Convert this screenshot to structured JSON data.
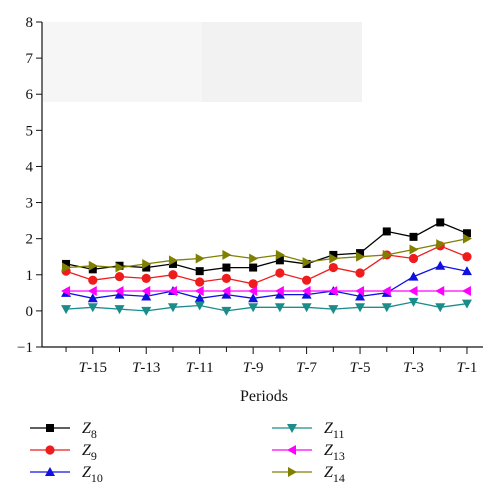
{
  "chart_data": {
    "type": "line",
    "title": "",
    "xlabel": "Periods",
    "ylabel": "",
    "ylim": [
      -1,
      8
    ],
    "yticks": [
      -1,
      0,
      1,
      2,
      3,
      4,
      5,
      6,
      7,
      8
    ],
    "x": [
      -16,
      -15,
      -14,
      -13,
      -12,
      -11,
      -10,
      -9,
      -8,
      -7,
      -6,
      -5,
      -4,
      -3,
      -2,
      -1
    ],
    "xlim": [
      -16.9,
      -0.4
    ],
    "x_tick_positions": [
      -15,
      -13,
      -11,
      -9,
      -7,
      -5,
      -3,
      -1
    ],
    "x_tick_labels": [
      {
        "prefix": "T",
        "suffix": "-15"
      },
      {
        "prefix": "T",
        "suffix": "-13"
      },
      {
        "prefix": "T",
        "suffix": "-11"
      },
      {
        "prefix": "T",
        "suffix": "-9"
      },
      {
        "prefix": "T",
        "suffix": "-7"
      },
      {
        "prefix": "T",
        "suffix": "-5"
      },
      {
        "prefix": "T",
        "suffix": "-3"
      },
      {
        "prefix": "T",
        "suffix": "-1"
      }
    ],
    "grid": false,
    "legend_position": "bottom",
    "series": [
      {
        "name": "Z8",
        "base": "Z",
        "sub": "8",
        "color": "#000000",
        "marker": "square",
        "values": [
          1.3,
          1.15,
          1.25,
          1.2,
          1.3,
          1.1,
          1.2,
          1.2,
          1.4,
          1.3,
          1.55,
          1.6,
          2.2,
          2.05,
          2.45,
          2.15
        ]
      },
      {
        "name": "Z9",
        "base": "Z",
        "sub": "9",
        "color": "#ee1c1c",
        "marker": "circle",
        "values": [
          1.1,
          0.85,
          0.95,
          0.9,
          1.0,
          0.8,
          0.9,
          0.75,
          1.05,
          0.85,
          1.2,
          1.05,
          1.55,
          1.45,
          1.8,
          1.5
        ]
      },
      {
        "name": "Z10",
        "base": "Z",
        "sub": "10",
        "color": "#1010e0",
        "marker": "triangle-up",
        "values": [
          0.5,
          0.35,
          0.45,
          0.4,
          0.55,
          0.35,
          0.45,
          0.35,
          0.45,
          0.45,
          0.55,
          0.4,
          0.5,
          0.95,
          1.25,
          1.1
        ]
      },
      {
        "name": "Z11",
        "base": "Z",
        "sub": "11",
        "color": "#1a8c8c",
        "marker": "triangle-down",
        "values": [
          0.05,
          0.1,
          0.05,
          0.0,
          0.1,
          0.15,
          0.0,
          0.1,
          0.1,
          0.1,
          0.05,
          0.1,
          0.1,
          0.25,
          0.1,
          0.2
        ]
      },
      {
        "name": "Z13",
        "base": "Z",
        "sub": "13",
        "color": "#ff00ff",
        "marker": "triangle-left",
        "values": [
          0.55,
          0.55,
          0.55,
          0.55,
          0.55,
          0.55,
          0.55,
          0.55,
          0.55,
          0.55,
          0.55,
          0.55,
          0.55,
          0.55,
          0.55,
          0.55
        ]
      },
      {
        "name": "Z14",
        "base": "Z",
        "sub": "14",
        "color": "#808000",
        "marker": "triangle-right",
        "values": [
          1.2,
          1.25,
          1.2,
          1.3,
          1.4,
          1.45,
          1.55,
          1.45,
          1.55,
          1.35,
          1.45,
          1.5,
          1.55,
          1.7,
          1.85,
          2.0
        ]
      }
    ]
  }
}
